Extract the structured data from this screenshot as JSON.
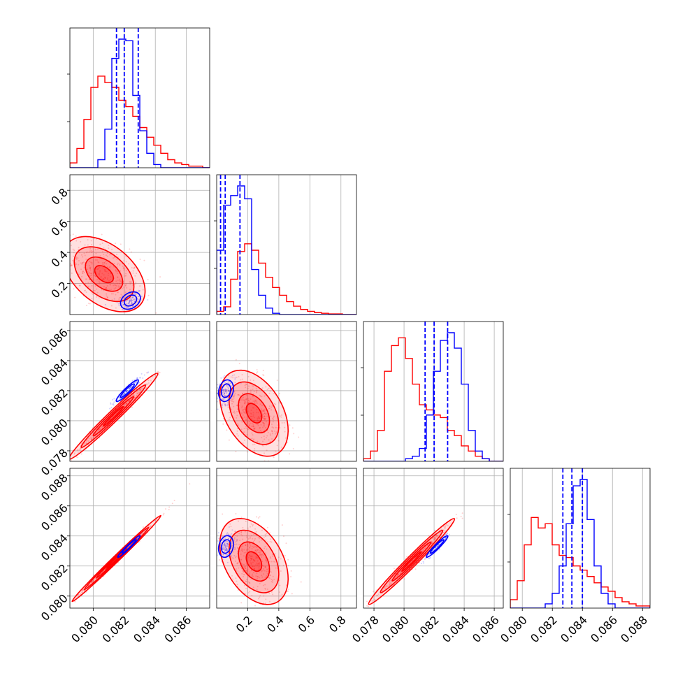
{
  "chart_data": {
    "type": "corner",
    "params": 4,
    "colors": {
      "series_a": "#ff0000",
      "series_b": "#0000ff",
      "grid": "#b0b0b0"
    },
    "ranges": [
      [
        0.0785,
        0.0875
      ],
      [
        0.0,
        0.9
      ],
      [
        0.0773,
        0.0866
      ],
      [
        0.0792,
        0.0885
      ]
    ],
    "xticks": [
      [
        "0.080",
        "0.082",
        "0.084",
        "0.086"
      ],
      [
        "0.2",
        "0.4",
        "0.6",
        "0.8"
      ],
      [
        "0.078",
        "0.080",
        "0.082",
        "0.084",
        "0.086"
      ],
      [
        "0.080",
        "0.082",
        "0.084",
        "0.086",
        "0.088"
      ]
    ],
    "yticks": [
      null,
      [
        "0.2",
        "0.4",
        "0.6",
        "0.8"
      ],
      [
        "0.078",
        "0.080",
        "0.082",
        "0.084",
        "0.086"
      ],
      [
        "0.080",
        "0.082",
        "0.084",
        "0.086",
        "0.088"
      ]
    ],
    "quantiles_b": [
      [
        0.0815,
        0.082,
        0.0829
      ],
      [
        0.025,
        0.055,
        0.15
      ],
      [
        0.0814,
        0.082,
        0.0829
      ],
      [
        0.0827,
        0.0833,
        0.084
      ]
    ],
    "hist_a": [
      {
        "edges": [
          0.0785,
          0.0875
        ],
        "counts": [
          3,
          12,
          30,
          50,
          57,
          53,
          50,
          42,
          38,
          32,
          25,
          19,
          14,
          9,
          5,
          3,
          2,
          1,
          1,
          0
        ]
      },
      {
        "edges": [
          0.0,
          0.9
        ],
        "counts": [
          5,
          12,
          55,
          98,
          110,
          100,
          80,
          58,
          42,
          30,
          20,
          13,
          8,
          5,
          3,
          2,
          1,
          1,
          0,
          0
        ]
      },
      {
        "edges": [
          0.0773,
          0.0866
        ],
        "counts": [
          1,
          4,
          12,
          35,
          45,
          48,
          40,
          30,
          22,
          20,
          18,
          17,
          12,
          10,
          6,
          4,
          2,
          1,
          0,
          0
        ]
      },
      {
        "edges": [
          0.0792,
          0.0885
        ],
        "counts": [
          4,
          13,
          30,
          43,
          38,
          40,
          30,
          25,
          24,
          20,
          18,
          15,
          12,
          10,
          8,
          5,
          3,
          2,
          1,
          1
        ]
      }
    ],
    "hist_b": [
      {
        "edges": [
          0.0785,
          0.0875
        ],
        "counts": [
          0,
          0,
          0,
          0,
          5,
          24,
          68,
          80,
          79,
          45,
          23,
          9,
          2,
          0,
          0,
          0,
          0,
          0,
          0,
          0
        ]
      },
      {
        "edges": [
          0.0,
          0.9
        ],
        "counts": [
          100,
          170,
          185,
          200,
          180,
          70,
          30,
          10,
          2,
          0,
          0,
          0,
          0,
          0,
          0,
          0,
          0,
          0,
          0,
          0
        ]
      },
      {
        "edges": [
          0.0773,
          0.0866
        ],
        "counts": [
          0,
          0,
          0,
          0,
          0,
          0,
          1,
          2,
          5,
          18,
          35,
          47,
          50,
          44,
          30,
          12,
          4,
          1,
          0,
          0
        ]
      },
      {
        "edges": [
          0.0792,
          0.0885
        ],
        "counts": [
          0,
          0,
          0,
          0,
          0,
          2,
          7,
          20,
          40,
          58,
          61,
          42,
          20,
          7,
          2,
          0,
          0,
          0,
          0,
          0
        ]
      }
    ],
    "pairs": [
      {
        "row": 1,
        "col": 0,
        "a": {
          "mean": [
            0.0807,
            0.26
          ],
          "sd": [
            0.0012,
            0.11
          ],
          "rho": -0.45
        },
        "b": {
          "mean": [
            0.0824,
            0.09
          ],
          "sd": [
            0.0004,
            0.035
          ],
          "rho": 0.3
        }
      },
      {
        "row": 2,
        "col": 0,
        "a": {
          "mean": [
            0.0813,
            0.0803
          ],
          "sd": [
            0.0013,
            0.0013
          ],
          "rho": 0.985
        },
        "b": {
          "mean": [
            0.0822,
            0.082
          ],
          "sd": [
            0.00045,
            0.00045
          ],
          "rho": 0.93
        }
      },
      {
        "row": 2,
        "col": 1,
        "a": {
          "mean": [
            0.24,
            0.0805
          ],
          "sd": [
            0.1,
            0.0013
          ],
          "rho": -0.4
        },
        "b": {
          "mean": [
            0.06,
            0.082
          ],
          "sd": [
            0.03,
            0.00045
          ],
          "rho": 0.2
        }
      },
      {
        "row": 3,
        "col": 0,
        "a": {
          "mean": [
            0.0815,
            0.0825
          ],
          "sd": [
            0.0013,
            0.0013
          ],
          "rho": 0.995
        },
        "b": {
          "mean": [
            0.0823,
            0.0833
          ],
          "sd": [
            0.00045,
            0.00045
          ],
          "rho": 0.97
        }
      },
      {
        "row": 3,
        "col": 1,
        "a": {
          "mean": [
            0.24,
            0.0823
          ],
          "sd": [
            0.1,
            0.0013
          ],
          "rho": -0.4
        },
        "b": {
          "mean": [
            0.06,
            0.0833
          ],
          "sd": [
            0.03,
            0.00045
          ],
          "rho": 0.2
        }
      },
      {
        "row": 3,
        "col": 2,
        "a": {
          "mean": [
            0.0805,
            0.0823
          ],
          "sd": [
            0.0013,
            0.0013
          ],
          "rho": 0.985
        },
        "b": {
          "mean": [
            0.0822,
            0.0833
          ],
          "sd": [
            0.00045,
            0.00045
          ],
          "rho": 0.95
        }
      }
    ],
    "grid": true,
    "legend": "none"
  }
}
